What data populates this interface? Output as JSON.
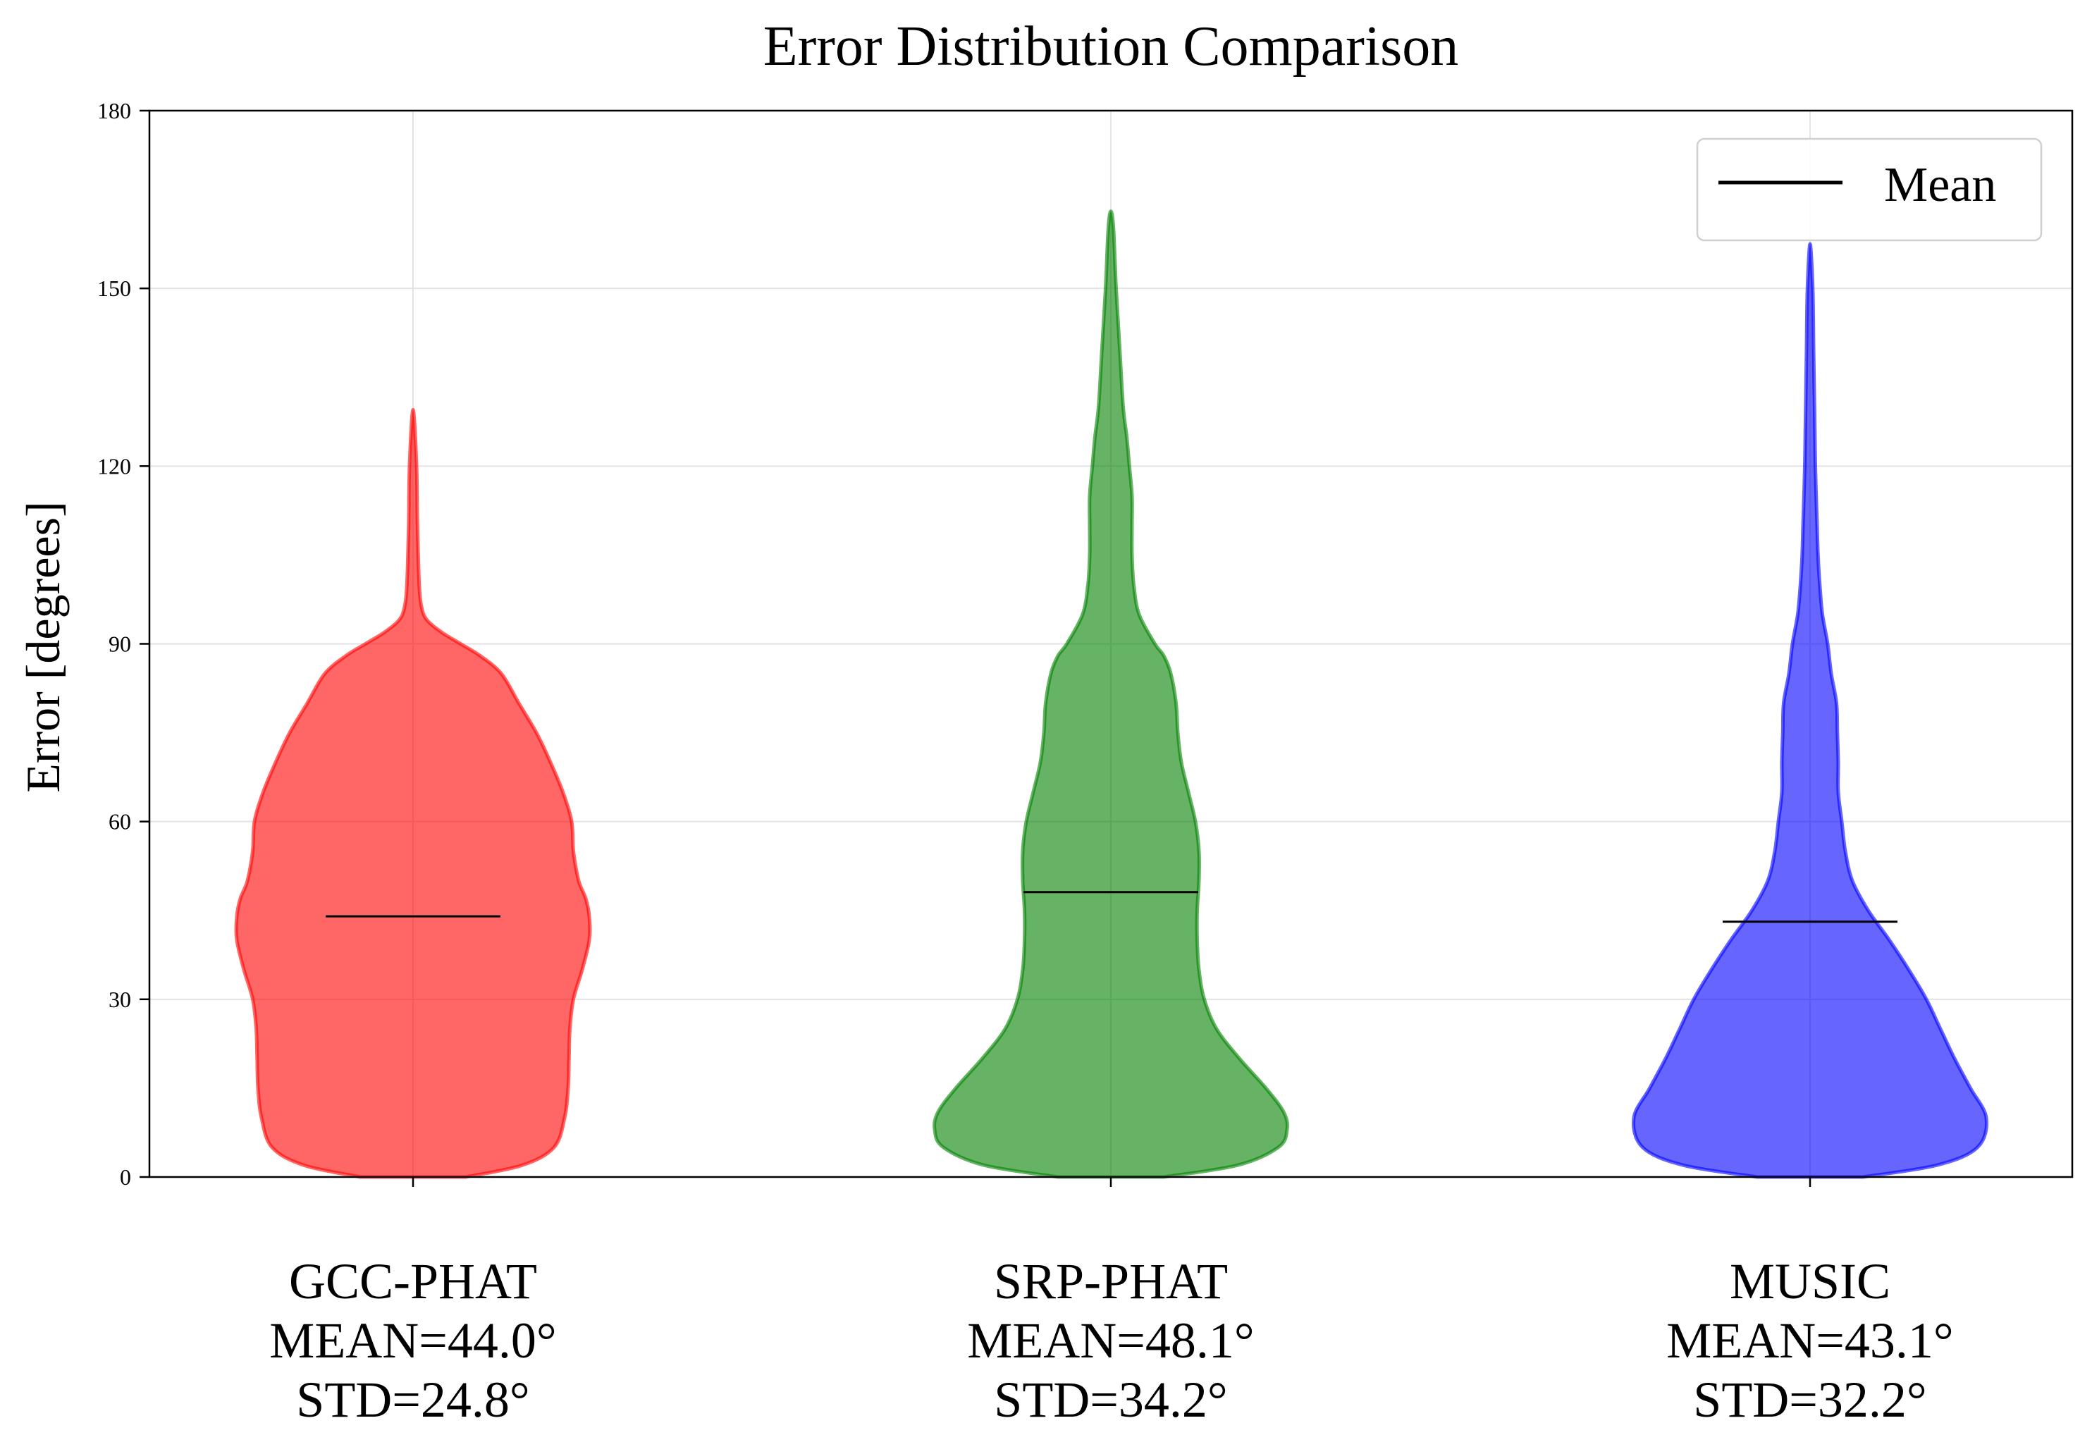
{
  "chart_data": {
    "type": "violin",
    "title": "Error Distribution Comparison",
    "xlabel": "",
    "ylabel": "Error [degrees]",
    "ylim": [
      0,
      180
    ],
    "yticks": [
      "0",
      "30",
      "60",
      "90",
      "120",
      "150",
      "180"
    ],
    "grid": true,
    "legend": {
      "placement": "top-right",
      "entries": [
        {
          "label": "Mean",
          "style": "black line"
        }
      ]
    },
    "series": [
      {
        "category_lines": [
          "GCC-PHAT",
          "MEAN=44.0°",
          "STD=24.8°"
        ],
        "mean": 44.0,
        "std": 24.8,
        "color": "#ff0000",
        "min": 0,
        "max": 129.5,
        "density_profile": [
          [
            0,
            0.3
          ],
          [
            2,
            0.62
          ],
          [
            5,
            0.8
          ],
          [
            10,
            0.86
          ],
          [
            15,
            0.88
          ],
          [
            20,
            0.885
          ],
          [
            25,
            0.89
          ],
          [
            30,
            0.91
          ],
          [
            35,
            0.96
          ],
          [
            40,
            1.0
          ],
          [
            44,
            1.0
          ],
          [
            47,
            0.98
          ],
          [
            50,
            0.94
          ],
          [
            55,
            0.91
          ],
          [
            60,
            0.9
          ],
          [
            65,
            0.85
          ],
          [
            70,
            0.78
          ],
          [
            75,
            0.7
          ],
          [
            80,
            0.6
          ],
          [
            85,
            0.5
          ],
          [
            88,
            0.38
          ],
          [
            90,
            0.27
          ],
          [
            92,
            0.16
          ],
          [
            94,
            0.08
          ],
          [
            96,
            0.05
          ],
          [
            100,
            0.035
          ],
          [
            110,
            0.025
          ],
          [
            120,
            0.02
          ],
          [
            129.5,
            0.0
          ]
        ]
      },
      {
        "category_lines": [
          "SRP-PHAT",
          "MEAN=48.1°",
          "STD=34.2°"
        ],
        "mean": 48.1,
        "std": 34.2,
        "color": "#008000",
        "min": 0,
        "max": 163,
        "density_profile": [
          [
            0,
            0.3
          ],
          [
            2,
            0.72
          ],
          [
            5,
            0.95
          ],
          [
            8,
            1.0
          ],
          [
            11,
            0.98
          ],
          [
            15,
            0.88
          ],
          [
            20,
            0.73
          ],
          [
            25,
            0.6
          ],
          [
            30,
            0.53
          ],
          [
            35,
            0.5
          ],
          [
            40,
            0.49
          ],
          [
            45,
            0.49
          ],
          [
            50,
            0.5
          ],
          [
            55,
            0.5
          ],
          [
            60,
            0.48
          ],
          [
            65,
            0.44
          ],
          [
            70,
            0.4
          ],
          [
            75,
            0.38
          ],
          [
            80,
            0.37
          ],
          [
            85,
            0.34
          ],
          [
            88,
            0.3
          ],
          [
            90,
            0.25
          ],
          [
            95,
            0.16
          ],
          [
            100,
            0.13
          ],
          [
            105,
            0.12
          ],
          [
            110,
            0.12
          ],
          [
            115,
            0.12
          ],
          [
            120,
            0.105
          ],
          [
            125,
            0.09
          ],
          [
            130,
            0.07
          ],
          [
            140,
            0.05
          ],
          [
            150,
            0.03
          ],
          [
            160,
            0.015
          ],
          [
            163,
            0.0
          ]
        ]
      },
      {
        "category_lines": [
          "MUSIC",
          "MEAN=43.1°",
          "STD=32.2°"
        ],
        "mean": 43.1,
        "std": 32.2,
        "color": "#0000ff",
        "min": 0,
        "max": 157.5,
        "density_profile": [
          [
            0,
            0.3
          ],
          [
            2,
            0.72
          ],
          [
            5,
            0.95
          ],
          [
            10,
            1.0
          ],
          [
            15,
            0.91
          ],
          [
            20,
            0.82
          ],
          [
            25,
            0.74
          ],
          [
            30,
            0.66
          ],
          [
            35,
            0.56
          ],
          [
            40,
            0.45
          ],
          [
            45,
            0.33
          ],
          [
            50,
            0.24
          ],
          [
            55,
            0.2
          ],
          [
            60,
            0.18
          ],
          [
            65,
            0.16
          ],
          [
            70,
            0.16
          ],
          [
            75,
            0.155
          ],
          [
            80,
            0.15
          ],
          [
            85,
            0.12
          ],
          [
            90,
            0.1
          ],
          [
            95,
            0.07
          ],
          [
            100,
            0.055
          ],
          [
            105,
            0.045
          ],
          [
            110,
            0.04
          ],
          [
            120,
            0.03
          ],
          [
            130,
            0.025
          ],
          [
            140,
            0.02
          ],
          [
            150,
            0.015
          ],
          [
            157.5,
            0.0
          ]
        ]
      }
    ]
  }
}
